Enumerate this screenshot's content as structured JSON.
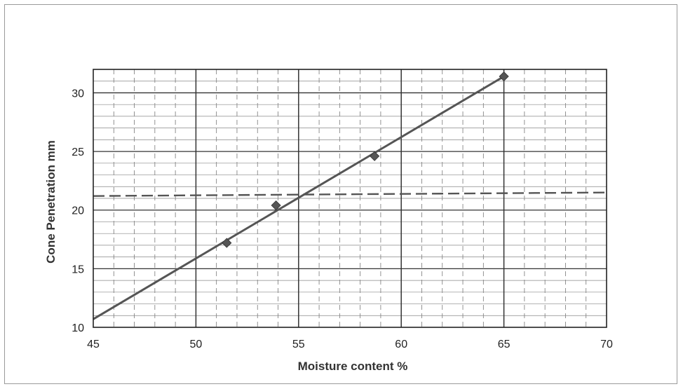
{
  "chart_data": {
    "type": "scatter",
    "title": "",
    "xlabel": "Moisture content %",
    "ylabel": "Cone Penetration mm",
    "xlim": [
      45,
      70
    ],
    "ylim": [
      10,
      32
    ],
    "x_ticks": [
      45,
      50,
      55,
      60,
      65,
      70
    ],
    "y_ticks": [
      10,
      15,
      20,
      25,
      30
    ],
    "grid": true,
    "legend": "none",
    "series": [
      {
        "values": [
          {
            "x": 51.5,
            "y": 17.2
          },
          {
            "x": 53.9,
            "y": 20.4
          },
          {
            "x": 58.7,
            "y": 24.6
          },
          {
            "x": 65.0,
            "y": 31.4
          }
        ]
      }
    ],
    "trendline": {
      "x": [
        45,
        65
      ],
      "y": [
        10.7,
        31.4
      ]
    },
    "reference_line": {
      "y": 21.2,
      "style": "dashed"
    },
    "colors": {
      "marker": "#555555",
      "line": "#555555",
      "grid": "#333333"
    }
  }
}
